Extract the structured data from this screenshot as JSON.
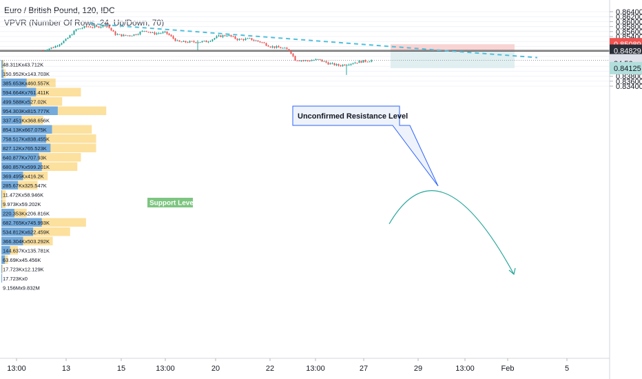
{
  "header": {
    "symbol_line": "Euro / British Pound, 120, IDC",
    "indicator_line": "VPVR (Number Of Rows, 24, Up/Down, 70)"
  },
  "chart_data": {
    "type": "candlestick",
    "y_axis": {
      "ticks": [
        "0.86400",
        "0.86200",
        "0.86000",
        "0.85800",
        "0.85600",
        "0.85400",
        "0.85200",
        "0.85000",
        "0.84600",
        "0.84200",
        "0.84000",
        "0.83800",
        "0.83600",
        "0.83400"
      ],
      "ylim": [
        0.834,
        0.865
      ]
    },
    "x_axis": {
      "ticks": [
        "13:00",
        "13",
        "15",
        "13:00",
        "20",
        "22",
        "13:00",
        "27",
        "29",
        "13:00",
        "Feb",
        "5"
      ]
    },
    "price_tags": [
      {
        "label": "0.85089",
        "value": 0.85089,
        "color": "#ef5350",
        "text_color": "#ffffff"
      },
      {
        "label": "0.84829",
        "value": 0.84829,
        "color": "#2a2e39",
        "text_color": "#ffffff"
      },
      {
        "label": "0.84442",
        "value": 0.84442,
        "color": "#e0e3eb",
        "text_color": "#131722"
      },
      {
        "label": "24:56",
        "value": 0.8432,
        "color": "#e0e3eb",
        "text_color": "#131722"
      },
      {
        "label": "0.84125",
        "value": 0.84125,
        "color": "#b2dfdb",
        "text_color": "#131722"
      }
    ],
    "annotations": {
      "callout": "Unconfirmed Resistance Level",
      "support_label": "Support Level"
    },
    "volume_profile": [
      {
        "label": "48.311Kx43.712K",
        "up": 0.02,
        "down": 0.02
      },
      {
        "label": "150.952Kx143.703K",
        "up": 0.03,
        "down": 0.03
      },
      {
        "label": "385.653Kx460.557K",
        "up": 0.35,
        "down": 0.4
      },
      {
        "label": "594.664Kx761.411K",
        "up": 0.48,
        "down": 0.62
      },
      {
        "label": "499.588Kx527.02K",
        "up": 0.41,
        "down": 0.43
      },
      {
        "label": "954.303Kx815.777K",
        "up": 0.78,
        "down": 0.67
      },
      {
        "label": "337.451Kx368.656K",
        "up": 0.28,
        "down": 0.3
      },
      {
        "label": "854.13Kx667.075K",
        "up": 0.7,
        "down": 0.55
      },
      {
        "label": "758.517Kx838.455K",
        "up": 0.62,
        "down": 0.69
      },
      {
        "label": "827.12Kx765.523K",
        "up": 0.68,
        "down": 0.63
      },
      {
        "label": "640.877Kx707.93K",
        "up": 0.52,
        "down": 0.58
      },
      {
        "label": "680.857Kx599.201K",
        "up": 0.56,
        "down": 0.49
      },
      {
        "label": "369.495Kx416.2K",
        "up": 0.3,
        "down": 0.34
      },
      {
        "label": "285.67Kx325.547K",
        "up": 0.23,
        "down": 0.27
      },
      {
        "label": "11.472Kx58.946K",
        "up": 0.01,
        "down": 0.05
      },
      {
        "label": "9.973Kx59.202K",
        "up": 0.01,
        "down": 0.05
      },
      {
        "label": "220.353Kx206.816K",
        "up": 0.18,
        "down": 0.17
      },
      {
        "label": "682.765Kx745.993K",
        "up": 0.56,
        "down": 0.61
      },
      {
        "label": "534.812Kx622.459K",
        "up": 0.44,
        "down": 0.51
      },
      {
        "label": "366.304Kx503.292K",
        "up": 0.3,
        "down": 0.41
      },
      {
        "label": "144.637Kx135.781K",
        "up": 0.12,
        "down": 0.11
      },
      {
        "label": "63.69Kx45.456K",
        "up": 0.05,
        "down": 0.04
      },
      {
        "label": "17.723Kx12.129K",
        "up": 0.01,
        "down": 0.01
      },
      {
        "label": "17.723Kx0",
        "up": 0.01,
        "down": 0.0
      },
      {
        "label": "9.156Mx9.832M",
        "up": 0.0,
        "down": 0.0
      }
    ],
    "colors": {
      "up": "#26a69a",
      "down": "#ef5350",
      "trendline": "#4ebfdc",
      "vp_up": "#5b9bd5",
      "vp_down": "#f9c74f"
    }
  }
}
